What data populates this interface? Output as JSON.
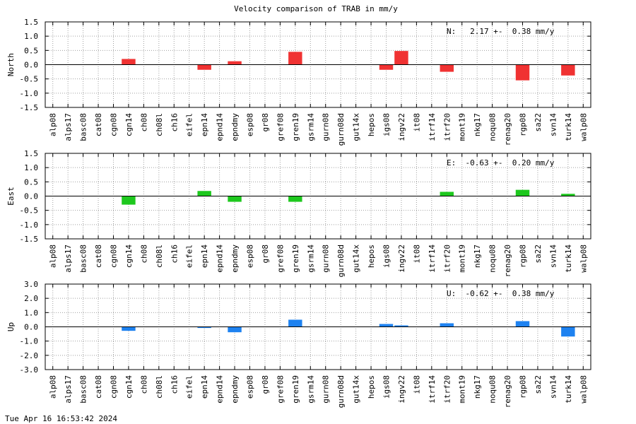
{
  "chart_data": {
    "type": "bar",
    "title": "Velocity comparison of TRAB in mm/y",
    "categories": [
      "alp08",
      "alps17",
      "basc08",
      "cat08",
      "cgn08",
      "cgn14",
      "ch08",
      "ch08l",
      "ch16",
      "eifel",
      "epn14",
      "epnd14",
      "epndmy",
      "esp08",
      "gr08",
      "gref08",
      "gren19",
      "gsrm14",
      "gurn08",
      "gurn08d",
      "gut14x",
      "hepos",
      "igs08",
      "ingv22",
      "it08",
      "itrf14",
      "itrf20",
      "mont19",
      "nkg17",
      "noqu08",
      "renag20",
      "rgp08",
      "sa22",
      "svn14",
      "turk14",
      "walp08"
    ],
    "panels": [
      {
        "ylabel": "North",
        "ylim": [
          -1.5,
          1.5
        ],
        "yticks": [
          "1.5",
          "1.0",
          "0.5",
          "0.0",
          "-0.5",
          "-1.0",
          "-1.5"
        ],
        "annotation": "N:   2.17 +-  0.38 mm/y",
        "color": "#f03232",
        "values": [
          null,
          null,
          null,
          null,
          null,
          0.2,
          null,
          null,
          null,
          null,
          -0.18,
          null,
          0.12,
          null,
          null,
          null,
          0.45,
          null,
          null,
          null,
          null,
          null,
          -0.18,
          0.48,
          null,
          null,
          -0.25,
          null,
          null,
          null,
          null,
          -0.55,
          null,
          null,
          -0.38,
          null
        ]
      },
      {
        "ylabel": "East",
        "ylim": [
          -1.5,
          1.5
        ],
        "yticks": [
          "1.5",
          "1.0",
          "0.5",
          "0.0",
          "-0.5",
          "-1.0",
          "-1.5"
        ],
        "annotation": "E:  -0.63 +-  0.20 mm/y",
        "color": "#1ec81e",
        "values": [
          null,
          null,
          null,
          null,
          null,
          -0.3,
          null,
          null,
          null,
          null,
          0.18,
          null,
          -0.2,
          null,
          null,
          null,
          -0.2,
          null,
          null,
          null,
          null,
          null,
          null,
          null,
          null,
          null,
          0.15,
          null,
          null,
          null,
          null,
          0.22,
          null,
          null,
          0.08,
          null
        ]
      },
      {
        "ylabel": "Up",
        "ylim": [
          -3.0,
          3.0
        ],
        "yticks": [
          "3.0",
          "2.0",
          "1.0",
          "0.0",
          "-1.0",
          "-2.0",
          "-3.0"
        ],
        "annotation": "U:  -0.62 +-  0.38 mm/y",
        "color": "#1e82f0",
        "values": [
          null,
          null,
          null,
          null,
          null,
          -0.28,
          null,
          null,
          null,
          null,
          -0.08,
          null,
          -0.38,
          null,
          null,
          null,
          0.5,
          null,
          null,
          null,
          null,
          null,
          0.2,
          0.1,
          null,
          null,
          0.25,
          null,
          null,
          null,
          null,
          0.4,
          null,
          null,
          -0.68,
          null
        ]
      }
    ],
    "grid": true
  },
  "footer": {
    "timestamp": "Tue Apr 16 16:53:42 2024"
  }
}
